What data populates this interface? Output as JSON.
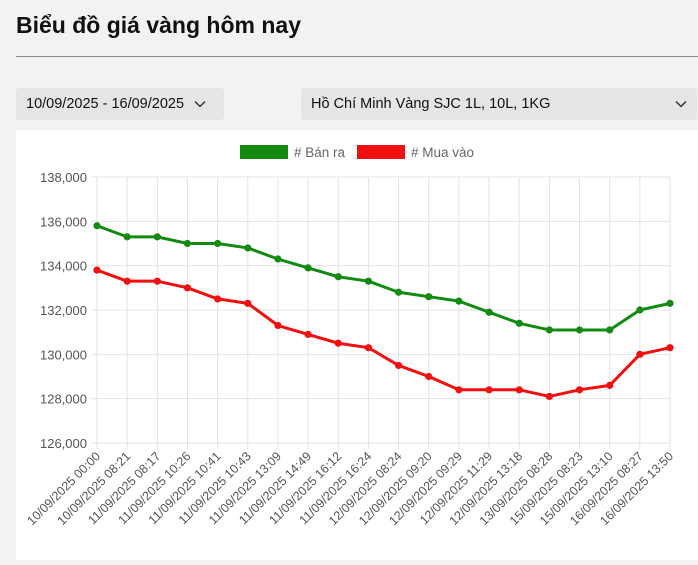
{
  "page_title": "Biểu đồ giá vàng hôm nay",
  "filters": {
    "date_range": "10/09/2025 - 16/09/2025",
    "location_product": "Hồ Chí Minh Vàng SJC 1L, 10L, 1KG"
  },
  "icons": {
    "dropdown": "chevron-down-icon"
  },
  "colors": {
    "sell": "#138a12",
    "buy": "#f20f0f",
    "grid": "#e3e3e3"
  },
  "chart_data": {
    "type": "line",
    "title": "",
    "xlabel": "",
    "ylabel": "",
    "ylim": [
      126000,
      138000
    ],
    "yticks": [
      126000,
      128000,
      130000,
      132000,
      134000,
      136000,
      138000
    ],
    "ytick_labels": [
      "126,000",
      "128,000",
      "130,000",
      "132,000",
      "134,000",
      "136,000",
      "138,000"
    ],
    "grid": true,
    "legend_position": "top-center",
    "categories": [
      "10/09/2025 00:00",
      "10/09/2025 08:21",
      "11/09/2025 08:17",
      "11/09/2025 10:26",
      "11/09/2025 10:41",
      "11/09/2025 10:43",
      "11/09/2025 13:09",
      "11/09/2025 14:49",
      "11/09/2025 16:12",
      "11/09/2025 16:24",
      "12/09/2025 08:24",
      "12/09/2025 09:20",
      "12/09/2025 09:29",
      "12/09/2025 11:29",
      "12/09/2025 13:18",
      "13/09/2025 08:28",
      "15/09/2025 08:23",
      "15/09/2025 13:10",
      "16/09/2025 08:27",
      "16/09/2025 13:50"
    ],
    "series": [
      {
        "name": "# Bán ra",
        "color": "#138a12",
        "values": [
          135800,
          135300,
          135300,
          135000,
          135000,
          134800,
          134300,
          133900,
          133500,
          133300,
          132800,
          132600,
          132400,
          131900,
          131400,
          131100,
          131100,
          131100,
          132000,
          132300
        ]
      },
      {
        "name": "# Mua vào",
        "color": "#f20f0f",
        "values": [
          133800,
          133300,
          133300,
          133000,
          132500,
          132300,
          131300,
          130900,
          130500,
          130300,
          129500,
          129000,
          128400,
          128400,
          128400,
          128100,
          128400,
          128600,
          130000,
          130300
        ]
      }
    ]
  }
}
